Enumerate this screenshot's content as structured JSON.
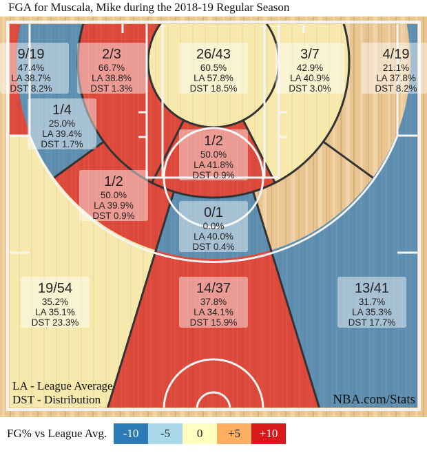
{
  "title": "FGA for Muscala, Mike during the 2018-19 Regular Season",
  "chart_data": {
    "type": "heatmap",
    "title": "FGA for Muscala, Mike during the 2018-19 Regular Season",
    "zones": [
      {
        "made_att": "9/19",
        "fg_pct": "47.4%",
        "la": "LA 38.7%",
        "dst": "DST 8.2%",
        "bucket": "+10"
      },
      {
        "made_att": "2/3",
        "fg_pct": "66.7%",
        "la": "LA 38.8%",
        "dst": "DST 1.3%",
        "bucket": "+10"
      },
      {
        "made_att": "26/43",
        "fg_pct": "60.5%",
        "la": "LA 57.8%",
        "dst": "DST 18.5%",
        "bucket": "0"
      },
      {
        "made_att": "3/7",
        "fg_pct": "42.9%",
        "la": "LA 40.9%",
        "dst": "DST 3.0%",
        "bucket": "0"
      },
      {
        "made_att": "4/19",
        "fg_pct": "21.1%",
        "la": "LA 37.8%",
        "dst": "DST 8.2%",
        "bucket": "-10"
      },
      {
        "made_att": "1/4",
        "fg_pct": "25.0%",
        "la": "LA 39.4%",
        "dst": "DST 1.7%",
        "bucket": "-10"
      },
      {
        "made_att": "1/2",
        "fg_pct": "50.0%",
        "la": "LA 41.8%",
        "dst": "DST 0.9%",
        "bucket": "+10"
      },
      {
        "made_att": "1/2",
        "fg_pct": "50.0%",
        "la": "LA 39.9%",
        "dst": "DST 0.9%",
        "bucket": "+10"
      },
      {
        "made_att": "0/1",
        "fg_pct": "0.0%",
        "la": "LA 40.0%",
        "dst": "DST 0.4%",
        "bucket": "-10"
      },
      {
        "made_att": "19/54",
        "fg_pct": "35.2%",
        "la": "LA 35.1%",
        "dst": "DST 23.3%",
        "bucket": "0"
      },
      {
        "made_att": "14/37",
        "fg_pct": "37.8%",
        "la": "LA 34.1%",
        "dst": "DST 15.9%",
        "bucket": "+10"
      },
      {
        "made_att": "13/41",
        "fg_pct": "31.7%",
        "la": "LA 35.3%",
        "dst": "DST 17.7%",
        "bucket": "-10"
      }
    ],
    "zone_colors": {
      "+10": "#dd4a3c",
      "0": "#f6e9ab",
      "-10": "#5e8fb0"
    },
    "notes": {
      "la": "LA - League Average",
      "dst": "DST - Distribution",
      "source": "NBA.com/Stats"
    },
    "legend": {
      "title": "FG% vs League Avg.",
      "items": [
        {
          "label": "-10",
          "color": "#2c7bb6",
          "text_color": "#ffffff"
        },
        {
          "label": "-5",
          "color": "#abd9e9",
          "text_color": "#222222"
        },
        {
          "label": "0",
          "color": "#ffffbf",
          "text_color": "#222222"
        },
        {
          "label": "+5",
          "color": "#fdae61",
          "text_color": "#222222"
        },
        {
          "label": "+10",
          "color": "#d7191c",
          "text_color": "#ffffff"
        }
      ]
    }
  }
}
